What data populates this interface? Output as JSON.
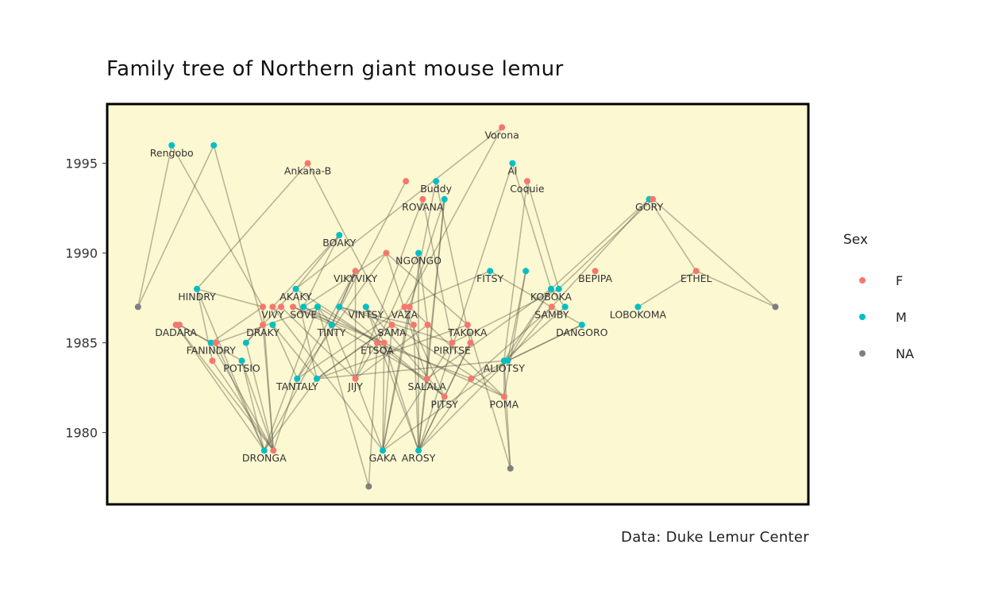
{
  "chart_data": {
    "type": "scatter",
    "title": "Family tree of Northern giant mouse lemur",
    "caption": "Data: Duke Lemur Center",
    "y_ticks": [
      1980,
      1985,
      1990,
      1995
    ],
    "ylim": [
      1976.0,
      1998.3
    ],
    "xlim": [
      0,
      1
    ],
    "grid": false,
    "legend": {
      "title": "Sex",
      "position": "right",
      "entries": [
        {
          "label": "F",
          "color": "#F8766D"
        },
        {
          "label": "M",
          "color": "#00BFC4"
        },
        {
          "label": "NA",
          "color": "#7F7F7F"
        }
      ]
    },
    "colors": {
      "F": "#F8766D",
      "M": "#00BFC4",
      "NA": "#7F7F7F",
      "panel_bg": "#FCF8D1",
      "edge": "#4A4A3A"
    },
    "nodes": [
      {
        "id": "vorona",
        "label": "Vorona",
        "sex": "F",
        "x": 0.563,
        "y": 1997.0
      },
      {
        "id": "rengobo",
        "label": "Rengobo",
        "sex": "M",
        "x": 0.092,
        "y": 1996.0
      },
      {
        "id": "m1996b",
        "label": "",
        "sex": "M",
        "x": 0.152,
        "y": 1996.0
      },
      {
        "id": "ankanab",
        "label": "Ankana-B",
        "sex": "F",
        "x": 0.286,
        "y": 1995.0
      },
      {
        "id": "al",
        "label": "Al",
        "sex": "M",
        "x": 0.578,
        "y": 1995.0
      },
      {
        "id": "coquie",
        "label": "Coquie",
        "sex": "F",
        "x": 0.599,
        "y": 1994.0
      },
      {
        "id": "f1994",
        "label": "",
        "sex": "F",
        "x": 0.426,
        "y": 1994.0
      },
      {
        "id": "buddy",
        "label": "Buddy",
        "sex": "M",
        "x": 0.469,
        "y": 1994.0
      },
      {
        "id": "rovana",
        "label": "ROVANA",
        "sex": "F",
        "x": 0.45,
        "y": 1993.0
      },
      {
        "id": "m1993",
        "label": "",
        "sex": "M",
        "x": 0.481,
        "y": 1993.0
      },
      {
        "id": "gory",
        "label": "GORY",
        "sex": "M",
        "x": 0.773,
        "y": 1993.0
      },
      {
        "id": "f1993b",
        "label": "",
        "sex": "F",
        "x": 0.778,
        "y": 1993.0
      },
      {
        "id": "boaky",
        "label": "BOAKY",
        "sex": "M",
        "x": 0.331,
        "y": 1991.0
      },
      {
        "id": "ngongo",
        "label": "NGONGO",
        "sex": "M",
        "x": 0.444,
        "y": 1990.0
      },
      {
        "id": "f1990",
        "label": "",
        "sex": "F",
        "x": 0.398,
        "y": 1990.0
      },
      {
        "id": "vikyviky",
        "label": "VIKYVIKY",
        "sex": "F",
        "x": 0.354,
        "y": 1989.0
      },
      {
        "id": "fitsy",
        "label": "FITSY",
        "sex": "M",
        "x": 0.546,
        "y": 1989.0
      },
      {
        "id": "m1989",
        "label": "",
        "sex": "M",
        "x": 0.597,
        "y": 1989.0
      },
      {
        "id": "bepipa",
        "label": "BEPIPA",
        "sex": "F",
        "x": 0.696,
        "y": 1989.0
      },
      {
        "id": "ethel",
        "label": "ETHEL",
        "sex": "F",
        "x": 0.84,
        "y": 1989.0
      },
      {
        "id": "hindry",
        "label": "HINDRY",
        "sex": "M",
        "x": 0.128,
        "y": 1988.0
      },
      {
        "id": "akaky",
        "label": "AKAKY",
        "sex": "M",
        "x": 0.269,
        "y": 1988.0
      },
      {
        "id": "koboka",
        "label": "KOBOKA",
        "sex": "M",
        "x": 0.633,
        "y": 1988.0
      },
      {
        "id": "m1988b",
        "label": "",
        "sex": "M",
        "x": 0.644,
        "y": 1988.0
      },
      {
        "id": "na1987a",
        "label": "",
        "sex": "NA",
        "x": 0.044,
        "y": 1987.0
      },
      {
        "id": "na1987b",
        "label": "",
        "sex": "NA",
        "x": 0.953,
        "y": 1987.0
      },
      {
        "id": "f1987a",
        "label": "",
        "sex": "F",
        "x": 0.222,
        "y": 1987.0
      },
      {
        "id": "vivy",
        "label": "VIVY",
        "sex": "F",
        "x": 0.236,
        "y": 1987.0
      },
      {
        "id": "f1987c",
        "label": "",
        "sex": "F",
        "x": 0.248,
        "y": 1987.0
      },
      {
        "id": "f1987d",
        "label": "",
        "sex": "F",
        "x": 0.265,
        "y": 1987.0
      },
      {
        "id": "sove",
        "label": "SOVE",
        "sex": "M",
        "x": 0.28,
        "y": 1987.0
      },
      {
        "id": "m1987b",
        "label": "",
        "sex": "M",
        "x": 0.3,
        "y": 1987.0
      },
      {
        "id": "m1987c",
        "label": "",
        "sex": "M",
        "x": 0.331,
        "y": 1987.0
      },
      {
        "id": "vintsy",
        "label": "VINTSY",
        "sex": "M",
        "x": 0.369,
        "y": 1987.0
      },
      {
        "id": "vaza",
        "label": "VAZA",
        "sex": "F",
        "x": 0.424,
        "y": 1987.0
      },
      {
        "id": "f1987f",
        "label": "",
        "sex": "F",
        "x": 0.431,
        "y": 1987.0
      },
      {
        "id": "samby",
        "label": "SAMBY",
        "sex": "F",
        "x": 0.634,
        "y": 1987.0
      },
      {
        "id": "m1987d",
        "label": "",
        "sex": "M",
        "x": 0.653,
        "y": 1987.0
      },
      {
        "id": "lobokoma",
        "label": "LOBOKOMA",
        "sex": "M",
        "x": 0.757,
        "y": 1987.0
      },
      {
        "id": "dadara",
        "label": "DADARA",
        "sex": "F",
        "x": 0.098,
        "y": 1986.0
      },
      {
        "id": "f1986b",
        "label": "",
        "sex": "F",
        "x": 0.103,
        "y": 1986.0
      },
      {
        "id": "draky",
        "label": "DRAKY",
        "sex": "F",
        "x": 0.222,
        "y": 1986.0
      },
      {
        "id": "m1986a",
        "label": "",
        "sex": "M",
        "x": 0.236,
        "y": 1986.0
      },
      {
        "id": "tinty",
        "label": "TINTY",
        "sex": "M",
        "x": 0.32,
        "y": 1986.0
      },
      {
        "id": "sama",
        "label": "SAMA",
        "sex": "F",
        "x": 0.406,
        "y": 1986.0
      },
      {
        "id": "f1986d",
        "label": "",
        "sex": "F",
        "x": 0.437,
        "y": 1986.0
      },
      {
        "id": "f1986e",
        "label": "",
        "sex": "F",
        "x": 0.457,
        "y": 1986.0
      },
      {
        "id": "takoka",
        "label": "TAKOKA",
        "sex": "F",
        "x": 0.514,
        "y": 1986.0
      },
      {
        "id": "dangoro",
        "label": "DANGORO",
        "sex": "M",
        "x": 0.677,
        "y": 1986.0
      },
      {
        "id": "fanindry",
        "label": "FANINDRY",
        "sex": "M",
        "x": 0.148,
        "y": 1985.0
      },
      {
        "id": "f1985a",
        "label": "",
        "sex": "F",
        "x": 0.155,
        "y": 1985.0
      },
      {
        "id": "m1985b",
        "label": "",
        "sex": "M",
        "x": 0.198,
        "y": 1985.0
      },
      {
        "id": "etsoa",
        "label": "ETSOA",
        "sex": "F",
        "x": 0.385,
        "y": 1985.0
      },
      {
        "id": "f1985c",
        "label": "",
        "sex": "F",
        "x": 0.395,
        "y": 1985.0
      },
      {
        "id": "piritse",
        "label": "PIRITSE",
        "sex": "F",
        "x": 0.492,
        "y": 1985.0
      },
      {
        "id": "f1985e",
        "label": "",
        "sex": "F",
        "x": 0.518,
        "y": 1985.0
      },
      {
        "id": "potsio",
        "label": "POTSIO",
        "sex": "M",
        "x": 0.192,
        "y": 1984.0
      },
      {
        "id": "f1984a",
        "label": "",
        "sex": "F",
        "x": 0.15,
        "y": 1984.0
      },
      {
        "id": "aliotsy",
        "label": "ALIOTSY",
        "sex": "M",
        "x": 0.566,
        "y": 1984.0
      },
      {
        "id": "m1984c",
        "label": "",
        "sex": "M",
        "x": 0.571,
        "y": 1984.0
      },
      {
        "id": "tantaly",
        "label": "TANTALY",
        "sex": "M",
        "x": 0.271,
        "y": 1983.0
      },
      {
        "id": "m1983b",
        "label": "",
        "sex": "M",
        "x": 0.299,
        "y": 1983.0
      },
      {
        "id": "jijy",
        "label": "JIJY",
        "sex": "F",
        "x": 0.354,
        "y": 1983.0
      },
      {
        "id": "salala",
        "label": "SALALA",
        "sex": "F",
        "x": 0.456,
        "y": 1983.0
      },
      {
        "id": "f1983e",
        "label": "",
        "sex": "F",
        "x": 0.519,
        "y": 1983.0
      },
      {
        "id": "pitsy",
        "label": "PITSY",
        "sex": "F",
        "x": 0.481,
        "y": 1982.0
      },
      {
        "id": "poma",
        "label": "POMA",
        "sex": "F",
        "x": 0.566,
        "y": 1982.0
      },
      {
        "id": "dronga",
        "label": "DRONGA",
        "sex": "M",
        "x": 0.224,
        "y": 1979.0
      },
      {
        "id": "f1979",
        "label": "",
        "sex": "F",
        "x": 0.237,
        "y": 1979.0
      },
      {
        "id": "gaka",
        "label": "GAKA",
        "sex": "M",
        "x": 0.393,
        "y": 1979.0
      },
      {
        "id": "arosy",
        "label": "AROSY",
        "sex": "M",
        "x": 0.444,
        "y": 1979.0
      },
      {
        "id": "na1978",
        "label": "",
        "sex": "NA",
        "x": 0.575,
        "y": 1978.0
      },
      {
        "id": "na1977",
        "label": "",
        "sex": "NA",
        "x": 0.373,
        "y": 1977.0
      }
    ],
    "edges": [
      [
        "rengobo",
        "na1987a"
      ],
      [
        "m1996b",
        "na1987a"
      ],
      [
        "rengobo",
        "f1987a"
      ],
      [
        "m1996b",
        "draky"
      ],
      [
        "ankanab",
        "hindry"
      ],
      [
        "ankanab",
        "sama"
      ],
      [
        "vorona",
        "vaza"
      ],
      [
        "vorona",
        "akaky"
      ],
      [
        "al",
        "koboka"
      ],
      [
        "al",
        "arosy"
      ],
      [
        "coquie",
        "m1988b"
      ],
      [
        "coquie",
        "aliotsy"
      ],
      [
        "f1994",
        "tinty"
      ],
      [
        "buddy",
        "gaka"
      ],
      [
        "buddy",
        "f1985e"
      ],
      [
        "rovana",
        "jijy"
      ],
      [
        "rovana",
        "piritse"
      ],
      [
        "m1993",
        "arosy"
      ],
      [
        "m1993",
        "salala"
      ],
      [
        "m1993",
        "f1987f"
      ],
      [
        "gory",
        "ethel"
      ],
      [
        "gory",
        "samby"
      ],
      [
        "gory",
        "koboka"
      ],
      [
        "f1993b",
        "na1987b"
      ],
      [
        "f1993b",
        "m1988b"
      ],
      [
        "boaky",
        "akaky"
      ],
      [
        "boaky",
        "sove"
      ],
      [
        "boaky",
        "vivy"
      ],
      [
        "ngongo",
        "etsoa"
      ],
      [
        "ngongo",
        "f1986e"
      ],
      [
        "ngongo",
        "arosy"
      ],
      [
        "f1990",
        "sove"
      ],
      [
        "f1990",
        "takoka"
      ],
      [
        "f1990",
        "tantaly"
      ],
      [
        "vikyviky",
        "tinty"
      ],
      [
        "vikyviky",
        "m1987c"
      ],
      [
        "vikyviky",
        "jijy"
      ],
      [
        "fitsy",
        "vaza"
      ],
      [
        "fitsy",
        "dangoro"
      ],
      [
        "m1989",
        "m1984c"
      ],
      [
        "m1989",
        "poma"
      ],
      [
        "ethel",
        "lobokoma"
      ],
      [
        "ethel",
        "na1987b"
      ],
      [
        "hindry",
        "f1987a"
      ],
      [
        "hindry",
        "dronga"
      ],
      [
        "hindry",
        "f1984a"
      ],
      [
        "akaky",
        "m1983b"
      ],
      [
        "akaky",
        "etsoa"
      ],
      [
        "koboka",
        "aliotsy"
      ],
      [
        "koboka",
        "salala"
      ],
      [
        "koboka",
        "m1984c"
      ],
      [
        "koboka",
        "m1987d"
      ],
      [
        "m1988b",
        "piritse"
      ],
      [
        "f1987a",
        "f1979"
      ],
      [
        "vivy",
        "gaka"
      ],
      [
        "f1987c",
        "jijy"
      ],
      [
        "f1987d",
        "tinty"
      ],
      [
        "f1987d",
        "f1985c"
      ],
      [
        "sove",
        "salala"
      ],
      [
        "sove",
        "poma"
      ],
      [
        "m1987b",
        "etsoa"
      ],
      [
        "m1987b",
        "dronga"
      ],
      [
        "m1987b",
        "na1977"
      ],
      [
        "m1987c",
        "f1986d"
      ],
      [
        "m1987c",
        "pitsy"
      ],
      [
        "vintsy",
        "f1985c"
      ],
      [
        "vintsy",
        "arosy"
      ],
      [
        "vaza",
        "pitsy"
      ],
      [
        "vaza",
        "tantaly"
      ],
      [
        "f1987f",
        "poma"
      ],
      [
        "f1987f",
        "gaka"
      ],
      [
        "samby",
        "m1984c"
      ],
      [
        "samby",
        "f1983e"
      ],
      [
        "m1987d",
        "aliotsy"
      ],
      [
        "dadara",
        "dronga"
      ],
      [
        "dadara",
        "f1979"
      ],
      [
        "f1986b",
        "potsio"
      ],
      [
        "f1986b",
        "fanindry"
      ],
      [
        "draky",
        "m1985b"
      ],
      [
        "draky",
        "f1979"
      ],
      [
        "m1986a",
        "m1983b"
      ],
      [
        "m1986a",
        "tantaly"
      ],
      [
        "tinty",
        "dronga"
      ],
      [
        "tinty",
        "jijy"
      ],
      [
        "tinty",
        "m1987b"
      ],
      [
        "sama",
        "gaka"
      ],
      [
        "sama",
        "m1983b"
      ],
      [
        "f1986d",
        "arosy"
      ],
      [
        "f1986e",
        "salala"
      ],
      [
        "f1986e",
        "jijy"
      ],
      [
        "takoka",
        "na1978"
      ],
      [
        "takoka",
        "m1983b"
      ],
      [
        "dangoro",
        "f1983e"
      ],
      [
        "dangoro",
        "m1984c"
      ],
      [
        "fanindry",
        "f1979"
      ],
      [
        "fanindry",
        "f1987a"
      ],
      [
        "f1985a",
        "dronga"
      ],
      [
        "f1985a",
        "m1987b"
      ],
      [
        "m1985b",
        "f1979"
      ],
      [
        "m1985b",
        "akaky"
      ],
      [
        "etsoa",
        "na1977"
      ],
      [
        "etsoa",
        "pitsy"
      ],
      [
        "f1985c",
        "arosy"
      ],
      [
        "f1985c",
        "gaka"
      ],
      [
        "piritse",
        "gaka"
      ],
      [
        "piritse",
        "m1987c"
      ],
      [
        "f1985e",
        "arosy"
      ],
      [
        "f1985e",
        "pitsy"
      ],
      [
        "potsio",
        "dronga"
      ],
      [
        "potsio",
        "f1979"
      ],
      [
        "f1984a",
        "f1979"
      ],
      [
        "aliotsy",
        "poma"
      ],
      [
        "aliotsy",
        "na1978"
      ],
      [
        "aliotsy",
        "m1983b"
      ],
      [
        "m1984c",
        "arosy"
      ],
      [
        "m1984c",
        "gaka"
      ],
      [
        "tantaly",
        "f1979"
      ],
      [
        "tantaly",
        "vikyviky"
      ],
      [
        "m1983b",
        "dronga"
      ],
      [
        "m1983b",
        "sama"
      ],
      [
        "jijy",
        "gaka"
      ],
      [
        "jijy",
        "etsoa"
      ],
      [
        "salala",
        "arosy"
      ],
      [
        "salala",
        "f1990"
      ],
      [
        "f1983e",
        "arosy"
      ],
      [
        "f1983e",
        "etsoa"
      ],
      [
        "pitsy",
        "arosy"
      ],
      [
        "pitsy",
        "vintsy"
      ],
      [
        "poma",
        "na1978"
      ],
      [
        "poma",
        "sama"
      ]
    ]
  }
}
